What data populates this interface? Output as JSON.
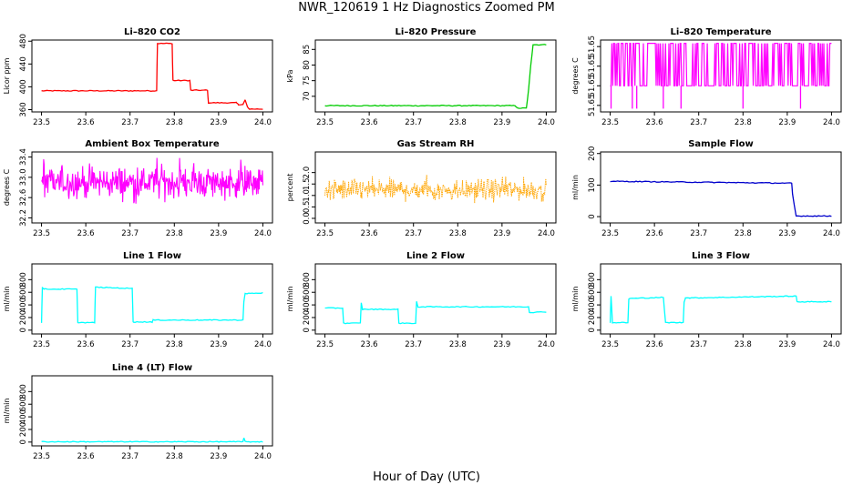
{
  "title": "NWR_120619  1 Hz Diagnostics Zoomed PM",
  "xlabel": "Hour of Day (UTC)",
  "chart_data": [
    {
      "type": "line",
      "title": "Li–820 CO2",
      "ylabel": "Licor ppm",
      "color": "#ff0000",
      "xlim": [
        23.5,
        24.0
      ],
      "ylim": [
        356,
        482
      ],
      "xticks": [
        "23.5",
        "23.6",
        "23.7",
        "23.8",
        "23.9",
        "24.0"
      ],
      "yticks": [
        "360",
        "400",
        "440",
        "480"
      ],
      "series": [
        {
          "x": [
            23.5,
            23.76,
            23.762,
            23.795,
            23.797,
            23.835,
            23.837,
            23.875,
            23.877,
            23.94,
            23.945,
            23.955,
            23.96,
            23.965,
            23.97,
            24.0
          ],
          "y": [
            393,
            393,
            476,
            476,
            411,
            411,
            394,
            394,
            372,
            372,
            369,
            369,
            377,
            365,
            361,
            361
          ]
        }
      ]
    },
    {
      "type": "line",
      "title": "Li–820 Pressure",
      "ylabel": "kPa",
      "color": "#00cc00",
      "xlim": [
        23.5,
        24.0
      ],
      "ylim": [
        65,
        88
      ],
      "xticks": [
        "23.5",
        "23.6",
        "23.7",
        "23.8",
        "23.9",
        "24.0"
      ],
      "yticks": [
        "70",
        "75",
        "80",
        "85"
      ],
      "series": [
        {
          "x": [
            23.5,
            23.93,
            23.935,
            23.955,
            23.96,
            23.965,
            23.97,
            24.0
          ],
          "y": [
            67,
            67,
            66.2,
            66.2,
            72,
            80,
            86.5,
            86.5
          ]
        }
      ]
    },
    {
      "type": "line",
      "title": "Li–820 Temperature",
      "ylabel": "degrees C",
      "color": "#ff00ff",
      "xlim": [
        23.5,
        24.0
      ],
      "ylim": [
        51.6494,
        51.6516
      ],
      "xticks": [
        "23.5",
        "23.6",
        "23.7",
        "23.8",
        "23.9",
        "24.0"
      ],
      "yticks": [
        "51.65",
        "51.65",
        "51.65",
        "51.65"
      ],
      "yticks_display": [
        "51.65",
        "51.65",
        "51.65",
        "51.65"
      ],
      "series": [
        {
          "levels": [
            51.6502,
            51.6515
          ],
          "dips": [
            23.502,
            23.55,
            23.56,
            23.62,
            23.66,
            23.8,
            23.93
          ]
        }
      ]
    },
    {
      "type": "line",
      "title": "Ambient Box Temperature",
      "ylabel": "degrees C",
      "color": "#ff00ff",
      "xlim": [
        23.5,
        24.0
      ],
      "ylim": [
        32.1,
        33.5
      ],
      "xticks": [
        "23.5",
        "23.6",
        "23.7",
        "23.8",
        "23.9",
        "24.0"
      ],
      "yticks": [
        "32.2",
        "32.6",
        "33.0",
        "33.4"
      ],
      "series": [
        {
          "mean": 32.9,
          "spread": 0.45
        }
      ]
    },
    {
      "type": "scatter",
      "title": "Gas Stream RH",
      "ylabel": "percent",
      "color": "#ffa500",
      "xlim": [
        23.5,
        24.0
      ],
      "ylim": [
        -0.2,
        2.9
      ],
      "xticks": [
        "23.5",
        "23.6",
        "23.7",
        "23.8",
        "23.9",
        "24.0"
      ],
      "yticks": [
        "0.0",
        "0.5",
        "1.0",
        "1.5",
        "2.0"
      ],
      "series": [
        {
          "mean": 1.25,
          "spread": 0.7
        }
      ]
    },
    {
      "type": "line",
      "title": "Sample Flow",
      "ylabel": "ml/min",
      "color": "#0000cc",
      "xlim": [
        23.5,
        24.0
      ],
      "ylim": [
        -20,
        205
      ],
      "xticks": [
        "23.5",
        "23.6",
        "23.7",
        "23.8",
        "23.9",
        "24.0"
      ],
      "yticks": [
        "0",
        "100",
        "200"
      ],
      "series": [
        {
          "x": [
            23.5,
            23.91,
            23.912,
            23.92,
            24.0
          ],
          "y": [
            112,
            106,
            70,
            2,
            2
          ]
        }
      ]
    },
    {
      "type": "line",
      "title": "Line 1 Flow",
      "ylabel": "ml/min",
      "color": "#00ffff",
      "xlim": [
        23.5,
        24.0
      ],
      "ylim": [
        -60,
        1050
      ],
      "xticks": [
        "23.5",
        "23.6",
        "23.7",
        "23.8",
        "23.9",
        "24.0"
      ],
      "yticks": [
        "0",
        "200",
        "400",
        "600",
        "800"
      ],
      "series": [
        {
          "x": [
            23.5,
            23.502,
            23.505,
            23.58,
            23.582,
            23.62,
            23.622,
            23.705,
            23.707,
            23.75,
            23.752,
            23.955,
            23.957,
            23.96,
            24.0
          ],
          "y": [
            120,
            680,
            650,
            650,
            120,
            120,
            680,
            660,
            130,
            130,
            160,
            160,
            450,
            580,
            590
          ]
        }
      ]
    },
    {
      "type": "line",
      "title": "Line 2 Flow",
      "ylabel": "ml/min",
      "color": "#00ffff",
      "xlim": [
        23.5,
        24.0
      ],
      "ylim": [
        -60,
        1050
      ],
      "xticks": [
        "23.5",
        "23.6",
        "23.7",
        "23.8",
        "23.9",
        "24.0"
      ],
      "yticks": [
        "0",
        "200",
        "400",
        "600",
        "800"
      ],
      "series": [
        {
          "x": [
            23.5,
            23.54,
            23.542,
            23.58,
            23.582,
            23.585,
            23.665,
            23.667,
            23.705,
            23.707,
            23.71,
            23.96,
            23.962,
            24.0
          ],
          "y": [
            350,
            350,
            110,
            110,
            430,
            330,
            330,
            110,
            110,
            450,
            370,
            370,
            280,
            290
          ]
        }
      ]
    },
    {
      "type": "line",
      "title": "Line 3 Flow",
      "ylabel": "ml/min",
      "color": "#00ffff",
      "xlim": [
        23.5,
        24.0
      ],
      "ylim": [
        -60,
        1050
      ],
      "xticks": [
        "23.5",
        "23.6",
        "23.7",
        "23.8",
        "23.9",
        "24.0"
      ],
      "yticks": [
        "0",
        "200",
        "400",
        "600",
        "800"
      ],
      "series": [
        {
          "x": [
            23.5,
            23.502,
            23.505,
            23.54,
            23.542,
            23.62,
            23.625,
            23.665,
            23.667,
            23.67,
            23.68,
            23.92,
            23.922,
            24.0
          ],
          "y": [
            120,
            540,
            120,
            120,
            500,
            520,
            120,
            120,
            450,
            510,
            510,
            540,
            450,
            450
          ]
        }
      ]
    },
    {
      "type": "line",
      "title": "Line 4 (LT) Flow",
      "ylabel": "ml/min",
      "color": "#00ffff",
      "xlim": [
        23.5,
        24.0
      ],
      "ylim": [
        -60,
        1050
      ],
      "xticks": [
        "23.5",
        "23.6",
        "23.7",
        "23.8",
        "23.9",
        "24.0"
      ],
      "yticks": [
        "0",
        "200",
        "400",
        "600",
        "800"
      ],
      "series": [
        {
          "x": [
            23.5,
            23.955,
            23.957,
            23.96,
            24.0
          ],
          "y": [
            5,
            5,
            70,
            5,
            5
          ]
        }
      ]
    }
  ]
}
